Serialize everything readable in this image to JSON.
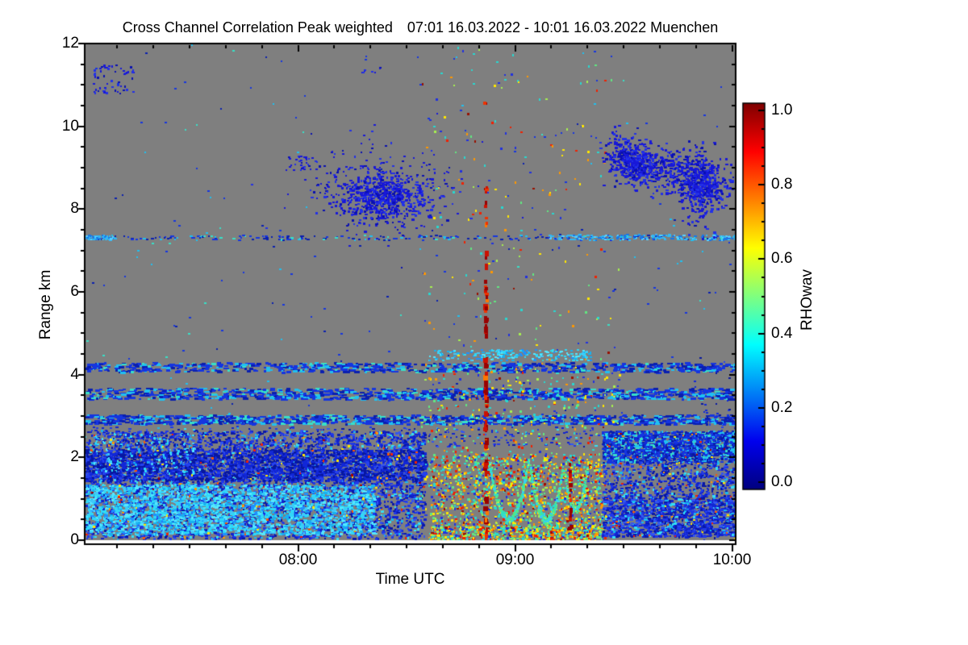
{
  "chart_data": {
    "type": "heatmap",
    "title": "Cross Channel Correlation Peak weighted",
    "title_range": "07:01 16.03.2022 - 10:01 16.03.2022 Muenchen",
    "time_start": "07:01",
    "time_end": "10:01",
    "date": "16.03.2022",
    "station": "Muenchen",
    "xlabel": "Time UTC",
    "ylabel": "Range km",
    "xlim_minutes": [
      0,
      180
    ],
    "x_major_ticks": [
      {
        "minute": 59,
        "label": "08:00"
      },
      {
        "minute": 119,
        "label": "09:00"
      },
      {
        "minute": 179,
        "label": "10:00"
      }
    ],
    "x_minor_step_minutes": 10,
    "ylim": [
      0,
      12
    ],
    "y_major_ticks": [
      0,
      2,
      4,
      6,
      8,
      10,
      12
    ],
    "y_minor_step": 0.5,
    "colorbar": {
      "label": "RHOwav",
      "ticks": [
        {
          "v": 0.0,
          "label": "0.0"
        },
        {
          "v": 0.2,
          "label": "0.2"
        },
        {
          "v": 0.4,
          "label": "0.4"
        },
        {
          "v": 0.6,
          "label": "0.6"
        },
        {
          "v": 0.8,
          "label": "0.8"
        },
        {
          "v": 1.0,
          "label": "1.0"
        }
      ],
      "minor_step": 0.05,
      "colormap": "jet",
      "stops": [
        [
          "#00007f",
          0
        ],
        [
          "#0000ee",
          0.125
        ],
        [
          "#00ffff",
          0.375
        ],
        [
          "#ffff00",
          0.625
        ],
        [
          "#ff0000",
          0.875
        ],
        [
          "#7f0000",
          1
        ]
      ]
    },
    "background_color": "#7f7f7f",
    "nodata_color": "#ffffff",
    "axis_color": "#000000",
    "seed": 7,
    "palettes": {
      "blues": [
        [
          "#1023cf",
          5
        ],
        [
          "#2139e8",
          4
        ],
        [
          "#0a18a8",
          3
        ],
        [
          "#3355f0",
          2
        ],
        [
          "#18b8f0",
          1
        ],
        [
          "#35dff5",
          1
        ]
      ],
      "deepblue": [
        [
          "#0717a0",
          4
        ],
        [
          "#1127d8",
          4
        ],
        [
          "#2440ee",
          2
        ]
      ],
      "cyanbright": [
        [
          "#2fd8f8",
          5
        ],
        [
          "#55e8ff",
          3
        ],
        [
          "#18b0f0",
          3
        ],
        [
          "#1e90ff",
          2
        ],
        [
          "#42c8f7",
          2
        ]
      ],
      "bandmix": [
        [
          "#1535e0",
          5
        ],
        [
          "#20c0f0",
          2
        ],
        [
          "#0a1fb0",
          3
        ],
        [
          "#38e0c8",
          1
        ]
      ],
      "skyblue": [
        [
          "#30b8f5",
          4
        ],
        [
          "#55d0ff",
          3
        ],
        [
          "#1878e8",
          3
        ]
      ],
      "cloudblue": [
        [
          "#1818d8",
          6
        ],
        [
          "#2230e8",
          3
        ],
        [
          "#0a10b0",
          2
        ]
      ],
      "warm": [
        [
          "#ffe800",
          3
        ],
        [
          "#ff9800",
          3
        ],
        [
          "#f52000",
          3
        ],
        [
          "#a80000",
          1
        ],
        [
          "#ff5500",
          2
        ]
      ],
      "storm": [
        [
          "#28d8d0",
          5
        ],
        [
          "#60e880",
          3
        ],
        [
          "#ffe800",
          4
        ],
        [
          "#ff9800",
          3
        ],
        [
          "#f02000",
          3
        ],
        [
          "#2030e0",
          3
        ],
        [
          "#a6f050",
          2
        ],
        [
          "#991000",
          1
        ]
      ],
      "reds": [
        [
          "#990000",
          5
        ],
        [
          "#cc1100",
          4
        ],
        [
          "#ee3300",
          2
        ],
        [
          "#ff7700",
          1
        ]
      ],
      "arcpal": [
        [
          "#30e0c0",
          4
        ],
        [
          "#55e880",
          3
        ],
        [
          "#38d0f0",
          3
        ],
        [
          "#baf050",
          1
        ]
      ]
    },
    "features": [
      {
        "kind": "speckle",
        "t": [
          0,
          94
        ],
        "h": [
          0.05,
          2.65
        ],
        "count": 5200,
        "palette": "blues",
        "size": [
          2,
          4,
          2,
          3
        ]
      },
      {
        "kind": "speckle",
        "t": [
          0,
          80
        ],
        "h": [
          0.15,
          1.35
        ],
        "count": 2200,
        "palette": "cyanbright",
        "size": [
          2,
          5,
          2,
          3
        ]
      },
      {
        "kind": "speckle",
        "t": [
          0,
          94
        ],
        "h": [
          1.45,
          2.2
        ],
        "count": 2200,
        "palette": "deepblue",
        "size": [
          2,
          5,
          2,
          3
        ]
      },
      {
        "kind": "diag",
        "t0": 0,
        "t1": 30,
        "step": 2.2,
        "hTop": 2.55,
        "hBot": 0.1,
        "drop": 9,
        "dots": 26,
        "palette": "cyanbright",
        "size": [
          2,
          3,
          2,
          3
        ]
      },
      {
        "kind": "speckle",
        "t": [
          0,
          94
        ],
        "h": [
          0.05,
          2.65
        ],
        "count": 120,
        "palette": "warm",
        "size": [
          2,
          3,
          2,
          3
        ]
      },
      {
        "kind": "speckle",
        "t": [
          0,
          180
        ],
        "h": [
          2.82,
          3.04
        ],
        "count": 1150,
        "palette": "bandmix",
        "size": [
          3,
          7,
          2,
          3
        ]
      },
      {
        "kind": "speckle",
        "t": [
          0,
          180
        ],
        "h": [
          3.42,
          3.68
        ],
        "count": 1050,
        "palette": "bandmix",
        "size": [
          3,
          7,
          2,
          3
        ]
      },
      {
        "kind": "speckle",
        "t": [
          0,
          180
        ],
        "h": [
          4.08,
          4.3
        ],
        "count": 800,
        "palette": "bandmix",
        "size": [
          3,
          7,
          2,
          3
        ]
      },
      {
        "kind": "speckle",
        "t": [
          0,
          143
        ],
        "h": [
          2.28,
          2.75
        ],
        "count": 300,
        "palette": "blues",
        "size": [
          2,
          4,
          2,
          2
        ]
      },
      {
        "kind": "speckle",
        "t": [
          95,
          140
        ],
        "h": [
          4.35,
          4.62
        ],
        "count": 220,
        "palette": "cyanbright",
        "size": [
          2,
          4,
          2,
          2
        ]
      },
      {
        "kind": "speckle",
        "t": [
          0,
          180
        ],
        "h": [
          7.27,
          7.38
        ],
        "count": 230,
        "palette": "bandmix",
        "size": [
          2,
          4,
          2,
          2
        ]
      },
      {
        "kind": "speckle",
        "t": [
          0,
          8
        ],
        "h": [
          7.27,
          7.38
        ],
        "count": 60,
        "palette": "skyblue",
        "size": [
          2,
          4,
          2,
          2
        ]
      },
      {
        "kind": "speckle",
        "t": [
          128,
          180
        ],
        "h": [
          7.27,
          7.4
        ],
        "count": 190,
        "palette": "skyblue",
        "size": [
          2,
          4,
          2,
          2
        ]
      },
      {
        "kind": "speckle",
        "t": [
          2,
          14
        ],
        "h": [
          10.8,
          11.5
        ],
        "count": 55,
        "palette": "cloudblue",
        "size": [
          2,
          3,
          2,
          3
        ]
      },
      {
        "kind": "speckle",
        "t": [
          56,
          64
        ],
        "h": [
          8.95,
          9.3
        ],
        "count": 36,
        "palette": "cloudblue",
        "size": [
          2,
          3,
          2,
          2
        ]
      },
      {
        "kind": "speckle",
        "t": [
          76,
          82
        ],
        "h": [
          11.25,
          11.5
        ],
        "count": 8,
        "palette": "cloudblue",
        "size": [
          2,
          3,
          2,
          2
        ]
      },
      {
        "kind": "speckle",
        "t": [
          0,
          180
        ],
        "h": [
          2.7,
          12
        ],
        "count": 200,
        "palette": "bandmix",
        "size": [
          2,
          3,
          2,
          2
        ]
      },
      {
        "kind": "cloud",
        "c": [
          82,
          8.35
        ],
        "s": [
          7,
          0.33
        ],
        "count": 600,
        "palette": "cloudblue",
        "size": [
          2,
          4,
          2,
          3
        ]
      },
      {
        "kind": "cloud",
        "c": [
          82,
          8.55
        ],
        "s": [
          12,
          0.6
        ],
        "count": 200,
        "palette": "cloudblue",
        "size": [
          2,
          3,
          2,
          2
        ]
      },
      {
        "kind": "speckle",
        "t": [
          93,
          148
        ],
        "h": [
          0,
          12
        ],
        "count": 300,
        "palette": "storm",
        "size": [
          2,
          3,
          2,
          3
        ]
      },
      {
        "kind": "speckle",
        "t": [
          93,
          148
        ],
        "h": [
          0,
          4.2
        ],
        "count": 420,
        "palette": "storm",
        "size": [
          2,
          3,
          2,
          3
        ]
      },
      {
        "kind": "speckle",
        "t": [
          95,
          143
        ],
        "h": [
          0,
          2.1
        ],
        "count": 1500,
        "palette": "storm",
        "size": [
          2,
          3,
          2,
          3
        ]
      },
      {
        "kind": "speckle",
        "t": [
          95,
          143
        ],
        "h": [
          0,
          0.35
        ],
        "count": 380,
        "palette": "storm",
        "size": [
          2,
          4,
          2,
          3
        ]
      },
      {
        "kind": "arc",
        "c": [
          117,
          0.52
        ],
        "hw": 5.5,
        "top": 1.95,
        "count": 260,
        "palette": "arcpal",
        "size": [
          2,
          3,
          2,
          3
        ]
      },
      {
        "kind": "arc",
        "c": [
          127.5,
          0.5
        ],
        "hw": 4.6,
        "top": 1.8,
        "count": 210,
        "palette": "arcpal",
        "size": [
          2,
          3,
          2,
          3
        ]
      },
      {
        "kind": "arc",
        "c": [
          135.5,
          0.75
        ],
        "hw": 3.2,
        "top": 1.7,
        "count": 120,
        "palette": "arcpal",
        "size": [
          2,
          3,
          2,
          2
        ]
      },
      {
        "kind": "vstreak",
        "t": 111,
        "h": [
          0.1,
          4.6
        ],
        "count": 52,
        "w": [
          3,
          6
        ],
        "seg": [
          3,
          9
        ],
        "palette": "reds"
      },
      {
        "kind": "vstreak",
        "t": 111,
        "h": [
          4.6,
          7.0
        ],
        "count": 24,
        "w": [
          3,
          5
        ],
        "seg": [
          3,
          8
        ],
        "palette": "reds"
      },
      {
        "kind": "vstreak",
        "t": 111,
        "h": [
          7.6,
          8.65
        ],
        "count": 10,
        "w": [
          3,
          5
        ],
        "seg": [
          3,
          7
        ],
        "palette": "reds"
      },
      {
        "kind": "vstreak",
        "t": 110.8,
        "h": [
          10.45,
          10.62
        ],
        "count": 2,
        "w": [
          3,
          4
        ],
        "seg": [
          3,
          6
        ],
        "palette": "reds"
      },
      {
        "kind": "vstreak",
        "t": 134.3,
        "h": [
          0.05,
          1.95
        ],
        "count": 15,
        "w": [
          3,
          5
        ],
        "seg": [
          3,
          7
        ],
        "palette": "reds"
      },
      {
        "kind": "vstreak",
        "t": 129.3,
        "h": [
          0.0,
          0.5
        ],
        "count": 5,
        "w": [
          3,
          5
        ],
        "seg": [
          3,
          6
        ],
        "palette": "reds"
      },
      {
        "kind": "speckle",
        "t": [
          143,
          180
        ],
        "h": [
          1.9,
          2.65
        ],
        "count": 1700,
        "palette": "bandmix",
        "size": [
          2,
          5,
          2,
          3
        ]
      },
      {
        "kind": "speckle",
        "t": [
          143,
          180
        ],
        "h": [
          0.1,
          1.05
        ],
        "count": 1400,
        "palette": "blues",
        "size": [
          2,
          5,
          2,
          3
        ]
      },
      {
        "kind": "speckle",
        "t": [
          143,
          180
        ],
        "h": [
          1.05,
          1.9
        ],
        "count": 550,
        "palette": "blues",
        "size": [
          2,
          4,
          2,
          3
        ]
      },
      {
        "kind": "speckle",
        "t": [
          143,
          180
        ],
        "h": [
          0,
          2.65
        ],
        "count": 80,
        "palette": "warm",
        "size": [
          2,
          3,
          2,
          2
        ]
      },
      {
        "kind": "diag",
        "t0": 152,
        "t1": 178,
        "step": 2.4,
        "hTop": 2.55,
        "hBot": 0.1,
        "drop": 10,
        "dots": 22,
        "palette": "deepblue",
        "size": [
          2,
          3,
          2,
          3
        ]
      },
      {
        "kind": "diag",
        "t0": 166,
        "t1": 179,
        "step": 3.5,
        "hTop": 4.4,
        "hBot": 2.2,
        "drop": 9,
        "dots": 12,
        "palette": "deepblue",
        "size": [
          2,
          3,
          2,
          2
        ]
      },
      {
        "kind": "trail",
        "p0": [
          146,
          9.35
        ],
        "p1": [
          177,
          8.5
        ],
        "s": [
          2.2,
          0.28
        ],
        "count": 750,
        "palette": "cloudblue",
        "size": [
          2,
          4,
          2,
          3
        ]
      },
      {
        "kind": "cloud",
        "c": [
          152,
          9.1
        ],
        "s": [
          2.5,
          0.22
        ],
        "count": 200,
        "palette": "cloudblue",
        "size": [
          2,
          4,
          2,
          3
        ]
      },
      {
        "kind": "cloud",
        "c": [
          170,
          8.6
        ],
        "s": [
          2.2,
          0.45
        ],
        "count": 280,
        "palette": "cloudblue",
        "size": [
          2,
          4,
          2,
          3
        ]
      }
    ]
  }
}
